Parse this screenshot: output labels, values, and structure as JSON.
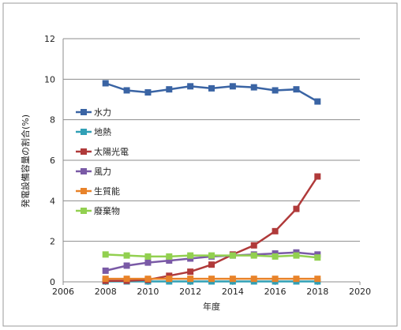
{
  "chart_data": {
    "type": "line",
    "xlabel": "年度",
    "ylabel": "発電設備容量の割合(%)",
    "xlim": [
      2006,
      2020
    ],
    "ylim": [
      0,
      12
    ],
    "x_ticks": [
      2006,
      2008,
      2010,
      2012,
      2014,
      2016,
      2018,
      2020
    ],
    "x_tick_labels": [
      "2006",
      "2008",
      "2010",
      "2012",
      "2014",
      "2016",
      "2018",
      "2020"
    ],
    "y_ticks": [
      0,
      2,
      4,
      6,
      8,
      10,
      12
    ],
    "y_tick_labels": [
      "0",
      "2",
      "4",
      "6",
      "8",
      "10",
      "12"
    ],
    "grid": "horizontal",
    "legend_position": "left-inside",
    "x": [
      2008,
      2009,
      2010,
      2011,
      2012,
      2013,
      2014,
      2015,
      2016,
      2017,
      2018
    ],
    "series": [
      {
        "name": "水力",
        "color": "#3a64a4",
        "values": [
          9.8,
          9.45,
          9.35,
          9.5,
          9.65,
          9.55,
          9.65,
          9.6,
          9.45,
          9.5,
          8.9
        ]
      },
      {
        "name": "地熱",
        "color": "#31a0b6",
        "values": [
          0.02,
          0.02,
          0.02,
          0.02,
          0.02,
          0.02,
          0.02,
          0.02,
          0.02,
          0.02,
          0.02
        ]
      },
      {
        "name": "太陽光電",
        "color": "#b03a3a",
        "values": [
          0.05,
          0.05,
          0.1,
          0.3,
          0.5,
          0.85,
          1.35,
          1.8,
          2.5,
          3.6,
          5.2
        ]
      },
      {
        "name": "風力",
        "color": "#7a5aa6",
        "values": [
          0.55,
          0.8,
          0.95,
          1.05,
          1.15,
          1.25,
          1.3,
          1.35,
          1.4,
          1.45,
          1.35
        ]
      },
      {
        "name": "生質能",
        "color": "#e8832a",
        "values": [
          0.15,
          0.15,
          0.15,
          0.15,
          0.15,
          0.15,
          0.15,
          0.15,
          0.15,
          0.15,
          0.15
        ]
      },
      {
        "name": "廢棄物",
        "color": "#92d050",
        "values": [
          1.35,
          1.3,
          1.25,
          1.25,
          1.3,
          1.3,
          1.3,
          1.3,
          1.25,
          1.3,
          1.2
        ]
      }
    ]
  }
}
